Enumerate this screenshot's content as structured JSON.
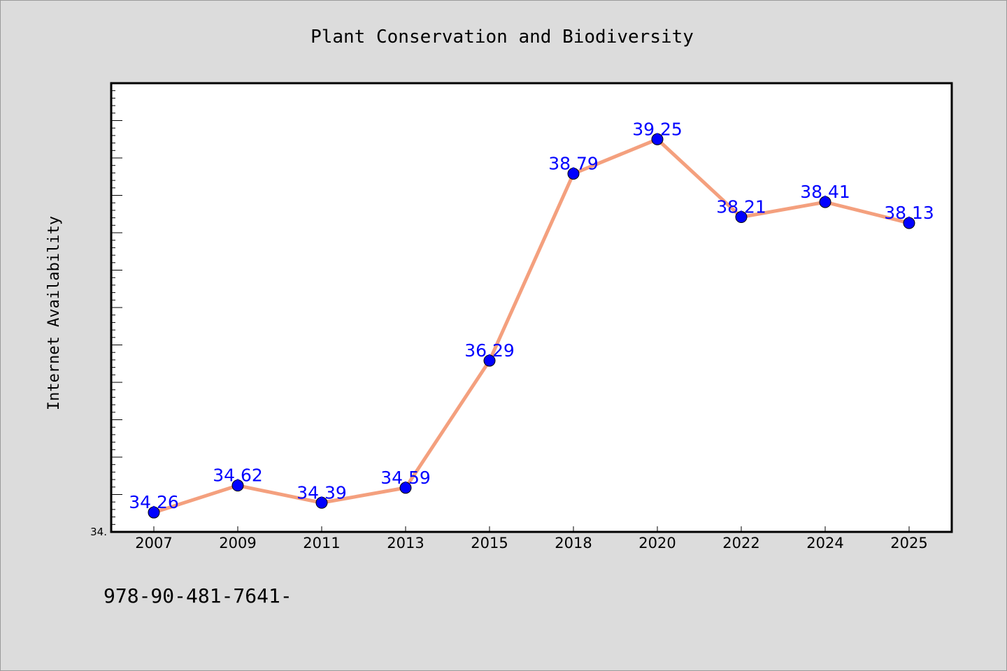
{
  "chart_data": {
    "type": "line",
    "title": "Plant Conservation and Biodiversity",
    "xlabel": "",
    "ylabel": "Internet Availability",
    "categories": [
      "2007",
      "2009",
      "2011",
      "2013",
      "2015",
      "2018",
      "2020",
      "2022",
      "2024",
      "2025"
    ],
    "series": [
      {
        "values": [
          34.26,
          34.62,
          34.39,
          34.59,
          36.29,
          38.79,
          39.25,
          38.21,
          38.41,
          38.13
        ],
        "labels": [
          "34.26",
          "34.62",
          "34.39",
          "34.59",
          "36.29",
          "38.79",
          "39.25",
          "38.21",
          "38.41",
          "38.13"
        ],
        "line_color": "#f4a07e",
        "marker_color": "#0000ff"
      }
    ],
    "ylim": [
      34.0,
      40.0
    ],
    "y_tick_label": "34.",
    "grid": false,
    "legend": "none",
    "colors": {
      "background": "#dcdcdc",
      "plot_area": "#ffffff",
      "label": "#0000ff"
    }
  },
  "footnote": "978-90-481-7641-"
}
